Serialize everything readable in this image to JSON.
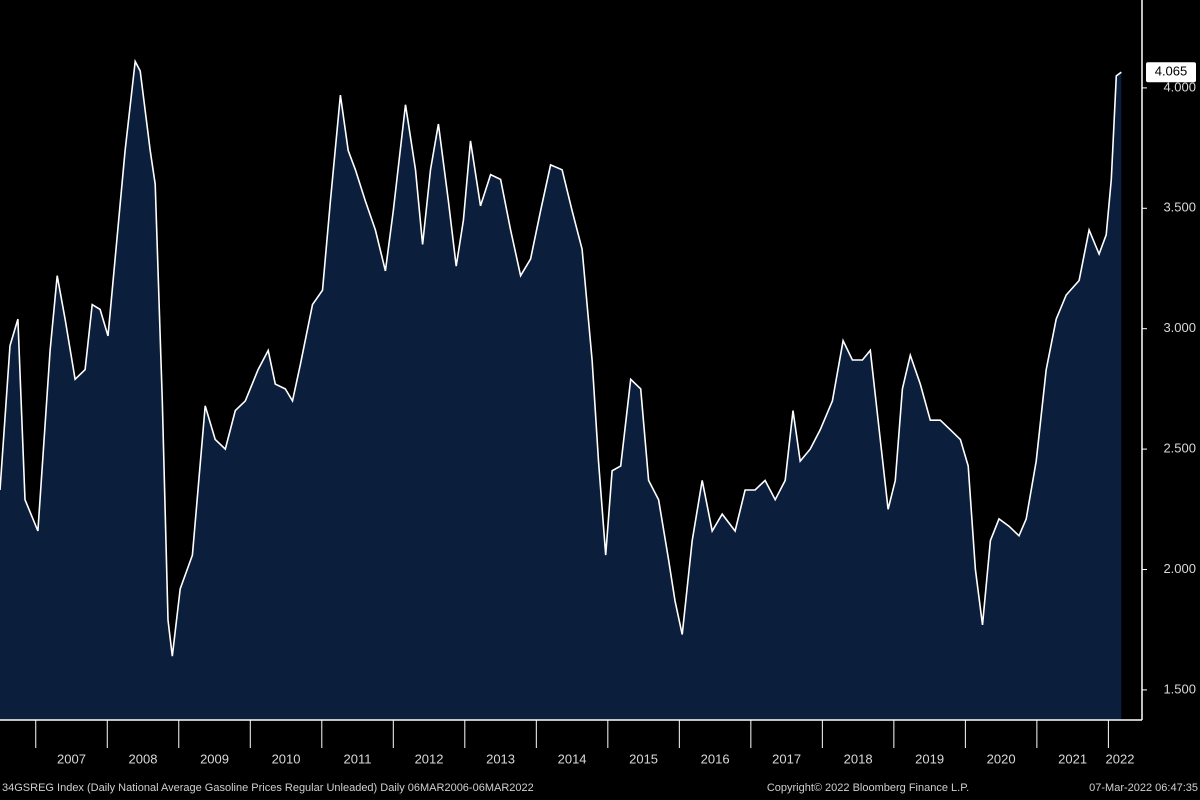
{
  "chart_data": {
    "type": "area",
    "x": [
      2006.5,
      2006.64,
      2006.75,
      2006.85,
      2007.03,
      2007.2,
      2007.3,
      2007.41,
      2007.55,
      2007.69,
      2007.79,
      2007.9,
      2008.01,
      2008.11,
      2008.25,
      2008.39,
      2008.46,
      2008.6,
      2008.67,
      2008.77,
      2008.85,
      2008.91,
      2009.02,
      2009.19,
      2009.37,
      2009.51,
      2009.65,
      2009.79,
      2009.93,
      2010.11,
      2010.25,
      2010.35,
      2010.49,
      2010.59,
      2010.7,
      2010.87,
      2011.01,
      2011.12,
      2011.26,
      2011.37,
      2011.47,
      2011.61,
      2011.75,
      2011.89,
      2012.0,
      2012.17,
      2012.31,
      2012.41,
      2012.52,
      2012.63,
      2012.77,
      2012.88,
      2012.98,
      2013.08,
      2013.22,
      2013.36,
      2013.5,
      2013.64,
      2013.78,
      2013.92,
      2014.06,
      2014.2,
      2014.36,
      2014.5,
      2014.64,
      2014.78,
      2014.87,
      2014.97,
      2015.06,
      2015.18,
      2015.32,
      2015.46,
      2015.57,
      2015.71,
      2015.85,
      2015.94,
      2016.04,
      2016.18,
      2016.32,
      2016.46,
      2016.6,
      2016.78,
      2016.92,
      2017.06,
      2017.2,
      2017.34,
      2017.48,
      2017.59,
      2017.69,
      2017.83,
      2017.97,
      2018.14,
      2018.29,
      2018.42,
      2018.56,
      2018.67,
      2018.78,
      2018.92,
      2019.02,
      2019.12,
      2019.23,
      2019.37,
      2019.51,
      2019.65,
      2019.79,
      2019.93,
      2020.04,
      2020.14,
      2020.24,
      2020.35,
      2020.47,
      2020.61,
      2020.75,
      2020.85,
      2020.99,
      2021.13,
      2021.27,
      2021.41,
      2021.59,
      2021.73,
      2021.87,
      2021.97,
      2022.04,
      2022.11,
      2022.18
    ],
    "values": [
      2.33,
      2.93,
      3.04,
      2.29,
      2.16,
      2.91,
      3.22,
      3.04,
      2.79,
      2.83,
      3.1,
      3.08,
      2.97,
      3.29,
      3.74,
      4.11,
      4.07,
      3.74,
      3.6,
      2.7,
      1.79,
      1.64,
      1.92,
      2.06,
      2.68,
      2.54,
      2.5,
      2.66,
      2.7,
      2.83,
      2.91,
      2.77,
      2.75,
      2.7,
      2.85,
      3.1,
      3.16,
      3.53,
      3.97,
      3.74,
      3.66,
      3.53,
      3.41,
      3.24,
      3.49,
      3.93,
      3.66,
      3.35,
      3.66,
      3.85,
      3.53,
      3.26,
      3.45,
      3.78,
      3.51,
      3.64,
      3.62,
      3.41,
      3.22,
      3.29,
      3.49,
      3.68,
      3.66,
      3.49,
      3.33,
      2.87,
      2.45,
      2.06,
      2.41,
      2.43,
      2.79,
      2.75,
      2.37,
      2.29,
      2.04,
      1.87,
      1.73,
      2.12,
      2.37,
      2.16,
      2.23,
      2.16,
      2.33,
      2.33,
      2.37,
      2.29,
      2.37,
      2.66,
      2.45,
      2.5,
      2.58,
      2.7,
      2.95,
      2.87,
      2.87,
      2.91,
      2.62,
      2.25,
      2.37,
      2.75,
      2.89,
      2.77,
      2.62,
      2.62,
      2.58,
      2.54,
      2.43,
      2.0,
      1.77,
      2.12,
      2.21,
      2.18,
      2.14,
      2.21,
      2.45,
      2.83,
      3.04,
      3.14,
      3.2,
      3.41,
      3.31,
      3.39,
      3.62,
      4.05,
      4.065
    ],
    "color": "#0b1f3c",
    "line_color": "#ffffff",
    "xlim": [
      2006.5,
      2022.47
    ],
    "xticks": [
      2007,
      2008,
      2009,
      2010,
      2011,
      2012,
      2013,
      2014,
      2015,
      2016,
      2017,
      2018,
      2019,
      2020,
      2021,
      2022
    ],
    "ylim": [
      1.375,
      4.365
    ],
    "yticks": [
      {
        "value": 1.5,
        "label": "1.500"
      },
      {
        "value": 2,
        "label": "2.000"
      },
      {
        "value": 2.5,
        "label": "2.500"
      },
      {
        "value": 3,
        "label": "3.000"
      },
      {
        "value": 3.5,
        "label": "3.500"
      },
      {
        "value": 4,
        "label": "4.000"
      }
    ],
    "footer": [
      "34GSREG Index (Daily National Average Gasoline Prices Regular Unleaded)  Daily 06MAR2006-06MAR2022",
      "Copyright© 2022 Bloomberg Finance L.P.",
      "07-Mar-2022 06:47:35"
    ]
  }
}
